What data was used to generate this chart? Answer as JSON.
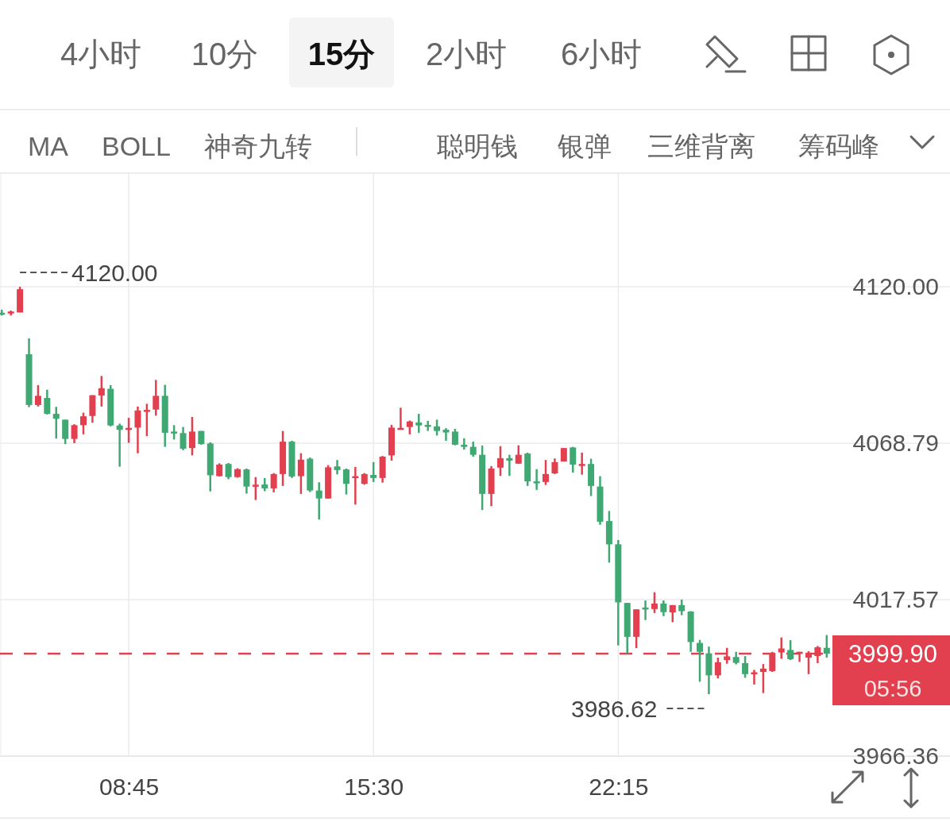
{
  "chart_data": {
    "type": "candlestick",
    "annotations": [
      "4小时",
      "10分",
      "15分",
      "2小时",
      "6小时",
      "MA",
      "BOLL",
      "神奇九转",
      "聪明钱",
      "银弹",
      "三维背离",
      "筹码峰",
      {
        "text": "4120.00",
        "x": 5.75,
        "y": 4120.0
      },
      {
        "text": "3986.62",
        "x": 24.75,
        "y": 3986.62
      },
      "05:56"
    ],
    "x": [
      5.25,
      5.5,
      5.75,
      6.0,
      6.25,
      6.5,
      6.75,
      7.0,
      7.25,
      7.5,
      7.75,
      8.0,
      8.25,
      8.5,
      8.75,
      9.0,
      9.25,
      9.5,
      9.75,
      10.0,
      10.25,
      10.5,
      10.75,
      11.0,
      11.25,
      11.5,
      11.75,
      12.0,
      12.25,
      12.5,
      12.75,
      13.0,
      13.25,
      13.5,
      13.75,
      14.0,
      14.25,
      14.5,
      14.75,
      15.0,
      15.25,
      15.5,
      15.75,
      16.0,
      16.25,
      16.5,
      16.75,
      17.0,
      17.25,
      17.5,
      17.75,
      18.0,
      18.25,
      18.5,
      18.75,
      19.0,
      19.25,
      19.5,
      19.75,
      20.0,
      20.25,
      20.5,
      20.75,
      21.0,
      21.25,
      21.5,
      21.75,
      22.0,
      22.25,
      22.5,
      22.75,
      23.0,
      23.25,
      23.5,
      23.75,
      24.0,
      24.25,
      24.5,
      24.75,
      25.0,
      25.25,
      25.5,
      25.75,
      26.0,
      26.25,
      26.5,
      26.75,
      27.0,
      27.25,
      27.5,
      27.75,
      28.0
    ],
    "ohlc": [
      [
        4111.5,
        4112.5,
        4110.6,
        4111.2
      ],
      [
        4111.4,
        4112.2,
        4110.6,
        4111.9
      ],
      [
        4111.6,
        4120.0,
        4111.6,
        4119.2
      ],
      [
        4097.9,
        4103.1,
        4080.6,
        4081.3
      ],
      [
        4081.3,
        4087.8,
        4080.8,
        4084.3
      ],
      [
        4083.6,
        4086.3,
        4078.2,
        4078.4
      ],
      [
        4078.4,
        4080.7,
        4070.3,
        4076.8
      ],
      [
        4076.5,
        4076.5,
        4068.5,
        4070.2
      ],
      [
        4070.2,
        4075.0,
        4068.8,
        4074.7
      ],
      [
        4074.7,
        4078.8,
        4071.7,
        4077.6
      ],
      [
        4077.7,
        4084.5,
        4075.5,
        4084.5
      ],
      [
        4084.4,
        4090.8,
        4080.8,
        4086.8
      ],
      [
        4086.6,
        4087.8,
        4074.3,
        4074.6
      ],
      [
        4074.6,
        4075.2,
        4061.1,
        4073.2
      ],
      [
        4073.2,
        4077.1,
        4068.9,
        4073.8
      ],
      [
        4073.9,
        4080.8,
        4065.5,
        4079.5
      ],
      [
        4079.6,
        4081.7,
        4071.1,
        4079.7
      ],
      [
        4079.8,
        4089.5,
        4077.8,
        4084.3
      ],
      [
        4084.3,
        4087.9,
        4067.6,
        4072.2
      ],
      [
        4072.6,
        4074.7,
        4070.0,
        4072.3
      ],
      [
        4072.1,
        4074.1,
        4066.5,
        4067.0
      ],
      [
        4067.2,
        4077.4,
        4064.8,
        4072.6
      ],
      [
        4072.8,
        4072.8,
        4068.3,
        4068.5
      ],
      [
        4068.7,
        4069.1,
        4053.0,
        4058.3
      ],
      [
        4058.0,
        4062.2,
        4057.9,
        4061.8
      ],
      [
        4062.0,
        4062.3,
        4057.0,
        4057.7
      ],
      [
        4057.7,
        4060.6,
        4057.5,
        4060.3
      ],
      [
        4060.2,
        4060.5,
        4052.3,
        4054.6
      ],
      [
        4054.7,
        4057.7,
        4050.2,
        4055.2
      ],
      [
        4055.3,
        4057.4,
        4053.1,
        4054.0
      ],
      [
        4054.0,
        4059.0,
        4052.7,
        4058.7
      ],
      [
        4058.7,
        4072.8,
        4054.8,
        4069.3
      ],
      [
        4069.3,
        4069.6,
        4057.4,
        4057.9
      ],
      [
        4058.0,
        4065.5,
        4052.2,
        4063.4
      ],
      [
        4063.7,
        4064.1,
        4052.8,
        4053.3
      ],
      [
        4053.3,
        4056.0,
        4043.8,
        4050.7
      ],
      [
        4050.7,
        4061.6,
        4050.6,
        4060.9
      ],
      [
        4061.2,
        4063.3,
        4058.6,
        4060.0
      ],
      [
        4060.2,
        4060.5,
        4052.0,
        4055.5
      ],
      [
        4057.5,
        4061.0,
        4048.7,
        4058.0
      ],
      [
        4055.5,
        4059.0,
        4055.2,
        4058.7
      ],
      [
        4058.4,
        4062.6,
        4056.1,
        4057.4
      ],
      [
        4057.4,
        4064.6,
        4055.9,
        4064.4
      ],
      [
        4064.8,
        4074.8,
        4063.1,
        4073.9
      ],
      [
        4073.6,
        4080.4,
        4073.6,
        4073.8
      ],
      [
        4074.1,
        4076.2,
        4071.7,
        4075.9
      ],
      [
        4075.6,
        4078.4,
        4072.2,
        4074.6
      ],
      [
        4074.8,
        4076.1,
        4072.8,
        4074.3
      ],
      [
        4074.3,
        4076.5,
        4071.3,
        4072.8
      ],
      [
        4073.2,
        4073.7,
        4069.6,
        4072.3
      ],
      [
        4072.6,
        4073.5,
        4068.1,
        4068.3
      ],
      [
        4068.3,
        4070.4,
        4066.7,
        4067.6
      ],
      [
        4067.6,
        4069.3,
        4064.4,
        4065.0
      ],
      [
        4065.0,
        4068.0,
        4046.9,
        4052.2
      ],
      [
        4052.2,
        4061.3,
        4048.2,
        4060.5
      ],
      [
        4060.8,
        4067.8,
        4058.1,
        4063.9
      ],
      [
        4063.9,
        4065.0,
        4058.1,
        4063.1
      ],
      [
        4062.1,
        4068.1,
        4062.0,
        4065.0
      ],
      [
        4065.4,
        4065.7,
        4054.8,
        4056.3
      ],
      [
        4056.3,
        4060.3,
        4053.5,
        4055.9
      ],
      [
        4056.1,
        4063.3,
        4055.1,
        4058.7
      ],
      [
        4058.9,
        4063.8,
        4058.7,
        4062.6
      ],
      [
        4062.8,
        4067.2,
        4062.8,
        4067.2
      ],
      [
        4067.4,
        4067.6,
        4059.2,
        4061.8
      ],
      [
        4061.7,
        4065.7,
        4058.5,
        4062.0
      ],
      [
        4062.0,
        4063.7,
        4051.5,
        4054.8
      ],
      [
        4054.6,
        4058.0,
        4042.1,
        4043.1
      ],
      [
        4043.3,
        4046.6,
        4029.7,
        4035.7
      ],
      [
        4035.7,
        4037.1,
        4002.6,
        4016.7
      ],
      [
        4016.5,
        4016.5,
        4000.0,
        4005.4
      ],
      [
        4005.4,
        4014.4,
        4001.7,
        4014.4
      ],
      [
        4015.0,
        4017.3,
        4010.9,
        4014.7
      ],
      [
        4014.5,
        4020.0,
        4013.2,
        4016.3
      ],
      [
        4016.3,
        4017.3,
        4012.2,
        4013.5
      ],
      [
        4013.4,
        4015.8,
        4010.2,
        4015.8
      ],
      [
        4015.8,
        4017.6,
        4012.5,
        4013.8
      ],
      [
        4013.7,
        4013.8,
        4000.5,
        4003.7
      ],
      [
        4003.4,
        4004.4,
        3990.7,
        4000.5
      ],
      [
        4000.0,
        4002.2,
        3986.62,
        3992.8
      ],
      [
        3992.8,
        3998.6,
        3991.8,
        3997.1
      ],
      [
        3997.8,
        4001.8,
        3996.6,
        3999.0
      ],
      [
        3998.8,
        4000.5,
        3996.4,
        3996.9
      ],
      [
        3996.8,
        3999.1,
        3992.0,
        3993.2
      ],
      [
        3993.5,
        3994.6,
        3989.8,
        3993.8
      ],
      [
        3993.9,
        3996.5,
        3987.0,
        3995.0
      ],
      [
        3994.2,
        4000.5,
        3993.9,
        4000.0
      ],
      [
        4000.3,
        4005.2,
        3998.2,
        4001.6
      ],
      [
        4001.1,
        4004.3,
        3997.8,
        3998.1
      ],
      [
        4000.2,
        4000.5,
        3997.2,
        4000.5
      ],
      [
        3998.6,
        4000.7,
        3993.2,
        4000.2
      ],
      [
        3999.1,
        4002.4,
        3996.8,
        4002.0
      ],
      [
        4001.8,
        4006.0,
        3998.6,
        3999.9
      ]
    ],
    "colors": [
      "#3fa873",
      "#e2404e",
      "#e2404e",
      "#3fa873",
      "#e2404e",
      "#3fa873",
      "#3fa873",
      "#3fa873",
      "#e2404e",
      "#e2404e",
      "#e2404e",
      "#e2404e",
      "#3fa873",
      "#3fa873",
      "#e2404e",
      "#e2404e",
      "#e2404e",
      "#e2404e",
      "#3fa873",
      "#3fa873",
      "#3fa873",
      "#e2404e",
      "#3fa873",
      "#3fa873",
      "#e2404e",
      "#3fa873",
      "#e2404e",
      "#3fa873",
      "#e2404e",
      "#3fa873",
      "#e2404e",
      "#e2404e",
      "#3fa873",
      "#e2404e",
      "#3fa873",
      "#3fa873",
      "#e2404e",
      "#3fa873",
      "#3fa873",
      "#e2404e",
      "#e2404e",
      "#3fa873",
      "#e2404e",
      "#e2404e",
      "#e2404e",
      "#e2404e",
      "#3fa873",
      "#3fa873",
      "#3fa873",
      "#3fa873",
      "#3fa873",
      "#3fa873",
      "#3fa873",
      "#3fa873",
      "#e2404e",
      "#e2404e",
      "#3fa873",
      "#e2404e",
      "#3fa873",
      "#3fa873",
      "#e2404e",
      "#e2404e",
      "#e2404e",
      "#3fa873",
      "#e2404e",
      "#3fa873",
      "#3fa873",
      "#3fa873",
      "#3fa873",
      "#3fa873",
      "#e2404e",
      "#3fa873",
      "#e2404e",
      "#3fa873",
      "#e2404e",
      "#3fa873",
      "#3fa873",
      "#3fa873",
      "#3fa873",
      "#e2404e",
      "#e2404e",
      "#3fa873",
      "#3fa873",
      "#e2404e",
      "#e2404e",
      "#e2404e",
      "#e2404e",
      "#3fa873",
      "#e2404e",
      "#e2404e",
      "#e2404e",
      "#3fa873"
    ],
    "xlim": [
      5.2,
      31.4
    ],
    "xticks": [
      {
        "value": 8.75,
        "label": "08:45"
      },
      {
        "value": 15.5,
        "label": "15:30"
      },
      {
        "value": 22.25,
        "label": "22:15"
      }
    ],
    "ylim": [
      3966.36,
      4157.2
    ],
    "yticks": [
      {
        "value": 3966.36,
        "label": "3966.36"
      },
      {
        "value": 4017.57,
        "label": "4017.57"
      },
      {
        "value": 4068.79,
        "label": "4068.79"
      },
      {
        "value": 4120,
        "label": "4120.00"
      }
    ],
    "ref_lines": [
      {
        "axis": "y",
        "value": 3999.9,
        "label": "3999.90",
        "color": "#e2404e",
        "line_style": "dashed"
      }
    ],
    "grid": true
  }
}
